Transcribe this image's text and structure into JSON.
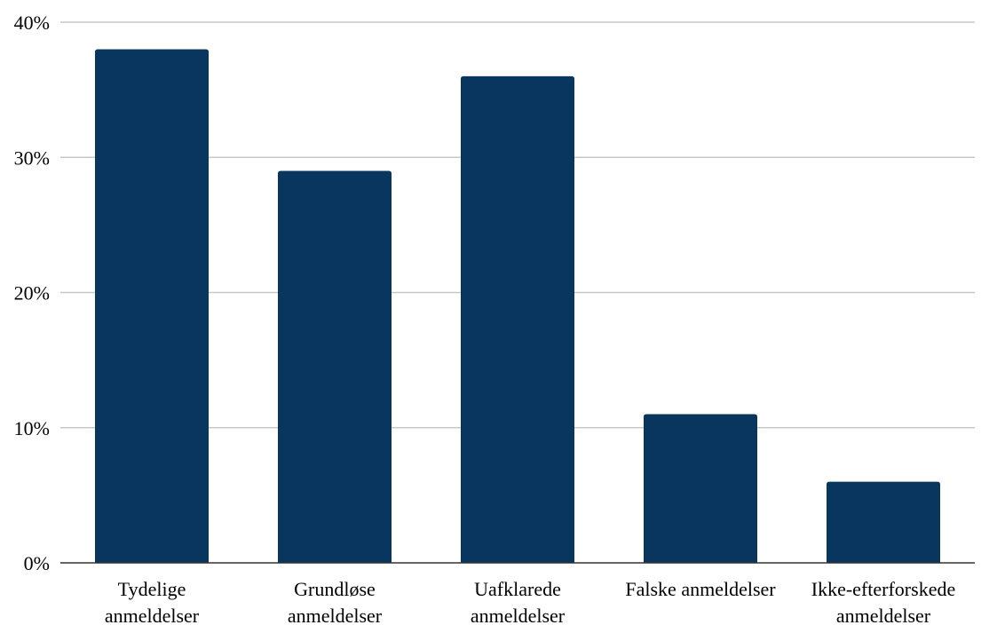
{
  "chart_data": {
    "type": "bar",
    "categories": [
      [
        "Tydelige",
        "anmeldelser"
      ],
      [
        "Grundløse",
        "anmeldelser"
      ],
      [
        "Uafklarede",
        "anmeldelser"
      ],
      [
        "Falske anmeldelser"
      ],
      [
        "Ikke-efterforskede",
        "anmeldelser"
      ]
    ],
    "values": [
      38,
      29,
      36,
      11,
      6
    ],
    "ylim": [
      0,
      40
    ],
    "yticks": [
      0,
      10,
      20,
      30,
      40
    ],
    "ytick_labels": [
      "0%",
      "10%",
      "20%",
      "30%",
      "40%"
    ],
    "grid": true,
    "legend": "none",
    "bar_color": "#08365f",
    "grid_color": "#c8c8c8",
    "axis_color": "#333333"
  }
}
